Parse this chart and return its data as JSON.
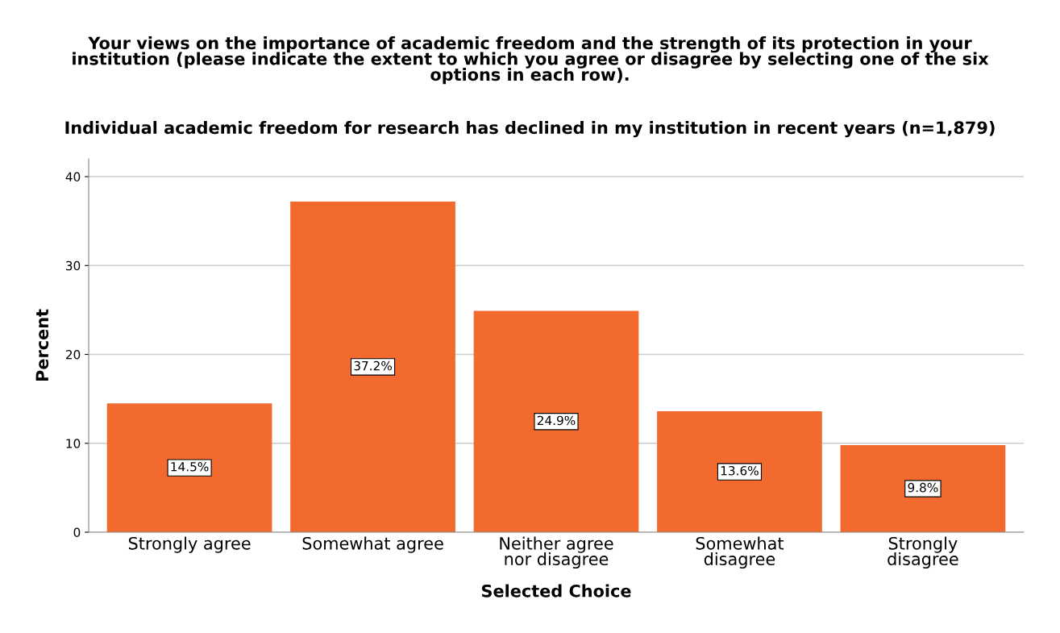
{
  "chart_data": {
    "type": "bar",
    "title": "Your views on the importance of academic freedom and the strength of its protection in your\ninstitution (please indicate the extent to which you agree or disagree by selecting one of the six\noptions in each row).",
    "subtitle": "Individual academic freedom for research has declined in my institution in recent years (n=1,879)",
    "xlabel": "Selected Choice",
    "ylabel": "Percent",
    "categories": [
      "Strongly agree",
      "Somewhat agree",
      "Neither agree\nnor disagree",
      "Somewhat\ndisagree",
      "Strongly\ndisagree"
    ],
    "values": [
      14.5,
      37.2,
      24.9,
      13.6,
      9.8
    ],
    "value_labels": [
      "14.5%",
      "37.2%",
      "24.9%",
      "13.6%",
      "9.8%"
    ],
    "color": "#f26a2e",
    "ylim": [
      0,
      42
    ],
    "yticks": [
      0,
      10,
      20,
      30,
      40
    ],
    "grid": "y"
  }
}
